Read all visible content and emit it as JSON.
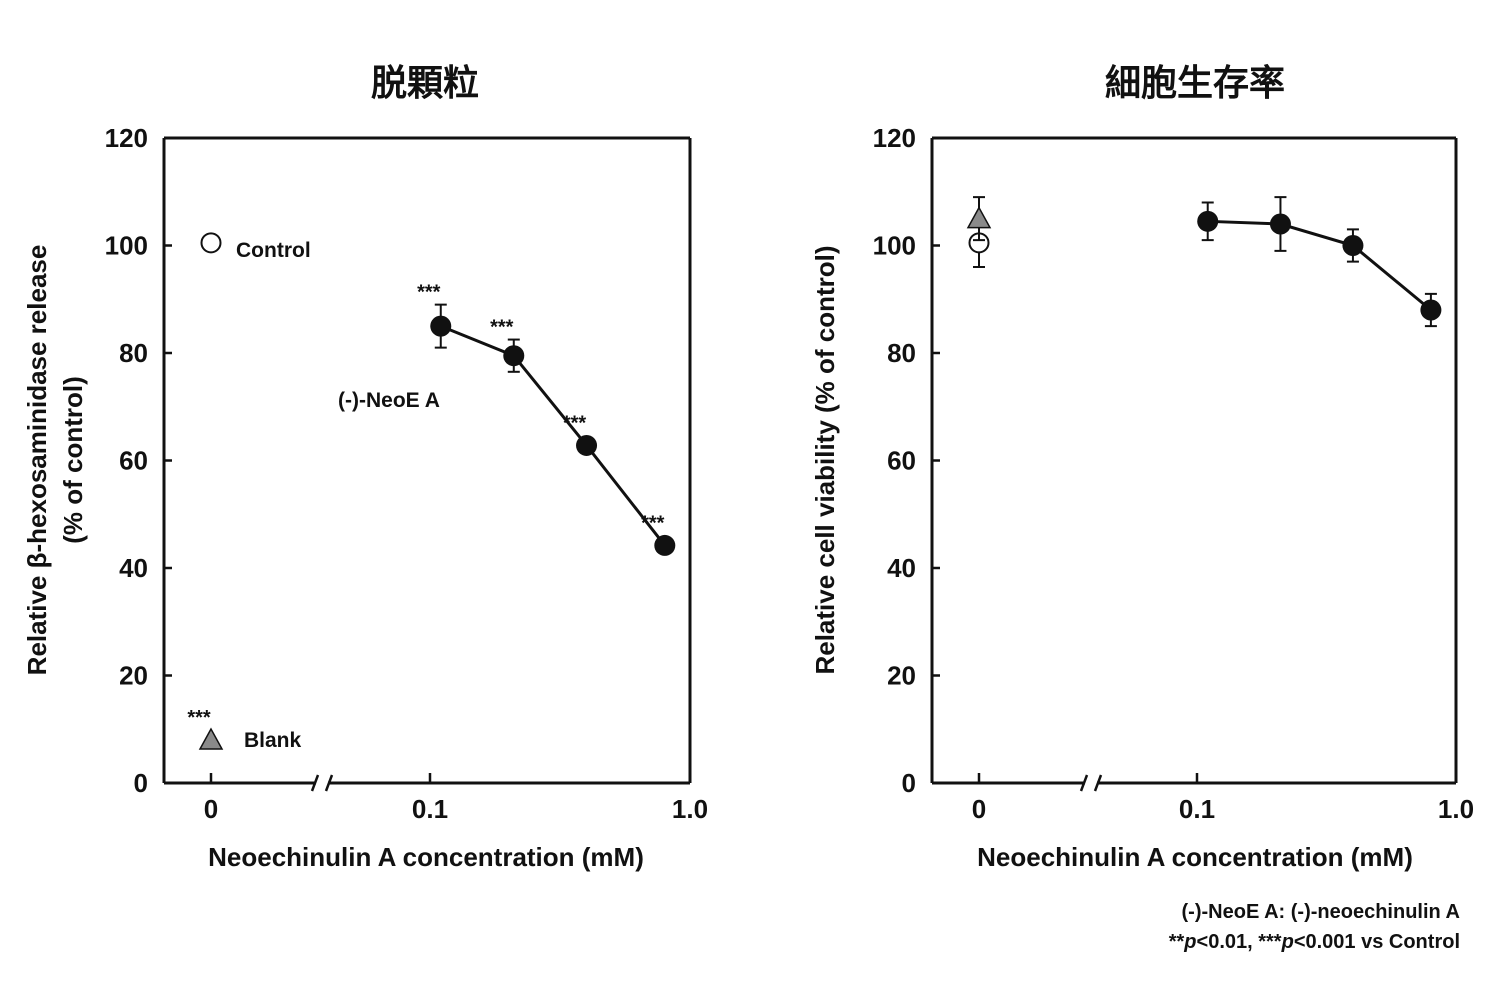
{
  "chart_data": [
    {
      "type": "line",
      "title": "脱顆粒",
      "xlabel": "Neoechinulin A concentration (mM)",
      "ylabel": [
        "Relative β-hexosaminidase release",
        "(% of control)"
      ],
      "ylim": [
        0,
        120
      ],
      "yticks": [
        "0",
        "20",
        "40",
        "60",
        "80",
        "100",
        "120"
      ],
      "xscale": "log with axis break after 0",
      "xticks": [
        "0",
        "0.1",
        "1.0"
      ],
      "series": [
        {
          "name": "(-)-NeoE A",
          "marker": "filled-circle",
          "connected": true,
          "x": [
            0.11,
            0.21,
            0.4,
            0.8
          ],
          "y": [
            85,
            79.5,
            62.8,
            44.2
          ],
          "err": [
            4,
            3,
            0,
            0
          ],
          "sig": [
            "***",
            "***",
            "***",
            "***"
          ]
        },
        {
          "name": "Control",
          "marker": "open-circle",
          "connected": false,
          "x": [
            0
          ],
          "y": [
            100.5
          ],
          "err": [
            0
          ],
          "sig": [
            ""
          ]
        },
        {
          "name": "Blank",
          "marker": "gray-triangle",
          "connected": false,
          "x": [
            0
          ],
          "y": [
            8
          ],
          "err": [
            0
          ],
          "sig": [
            "***"
          ]
        }
      ],
      "annotations": {
        "control": "Control",
        "blank": "Blank",
        "neoe": "(-)-NeoE A"
      }
    },
    {
      "type": "line",
      "title": "細胞生存率",
      "xlabel": "Neoechinulin A concentration (mM)",
      "ylabel": [
        "Relative cell viability (% of control)"
      ],
      "ylim": [
        0,
        120
      ],
      "yticks": [
        "0",
        "20",
        "40",
        "60",
        "80",
        "100",
        "120"
      ],
      "xscale": "log with axis break after 0",
      "xticks": [
        "0",
        "0.1",
        "1.0"
      ],
      "series": [
        {
          "name": "(-)-NeoE A",
          "marker": "filled-circle",
          "connected": true,
          "x": [
            0.11,
            0.21,
            0.4,
            0.8
          ],
          "y": [
            104.5,
            104,
            100,
            88
          ],
          "err": [
            3.5,
            5,
            3,
            3
          ],
          "sig": [
            "",
            "",
            "",
            ""
          ]
        },
        {
          "name": "Control",
          "marker": "open-circle",
          "connected": false,
          "x": [
            0
          ],
          "y": [
            100.5
          ],
          "err": [
            4.5
          ],
          "sig": [
            ""
          ]
        },
        {
          "name": "Blank",
          "marker": "gray-triangle",
          "connected": false,
          "x": [
            0
          ],
          "y": [
            105
          ],
          "err": [
            4
          ],
          "sig": [
            ""
          ]
        }
      ]
    }
  ],
  "footnote": {
    "line1": "(-)-NeoE A: (-)-neoechinulin A",
    "line2_prefix": "**",
    "p1": "p",
    "line2_mid1": "<0.01,  ***",
    "p2": "p",
    "line2_mid2": "<0.001  vs Control"
  },
  "colors": {
    "marker_fill": "#111111",
    "triangle_fill": "#8a8a8a",
    "open_fill": "#ffffff"
  }
}
